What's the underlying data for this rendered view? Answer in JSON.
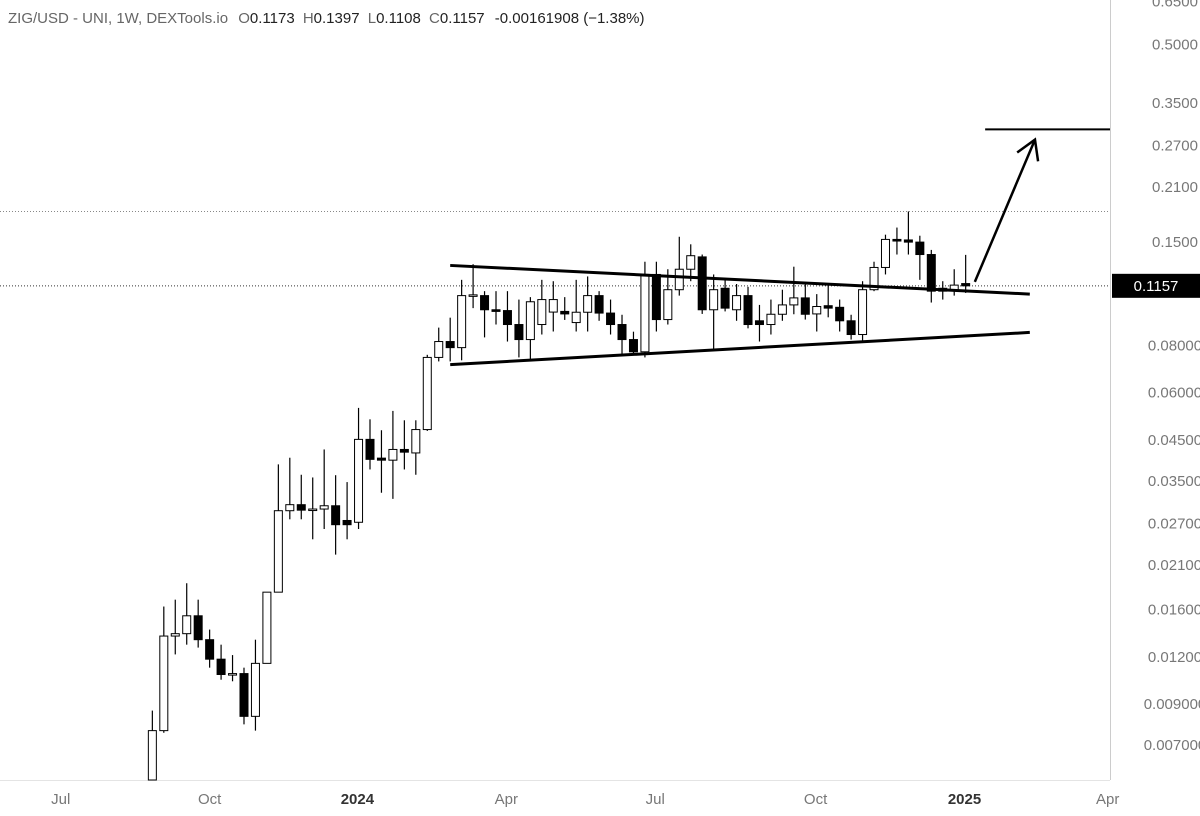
{
  "chart_data": {
    "type": "candlestick",
    "header": {
      "title": "ZIG/USD - UNI, 1W, DEXTools.io",
      "open_label": "O",
      "high_label": "H",
      "low_label": "L",
      "close_label": "C",
      "change": "-0.00161908 (−1.38%)"
    },
    "log_scale": true,
    "up_color": "#ffffff",
    "down_color": "#000000",
    "open": [
      0.0057,
      0.0077,
      0.0137,
      0.0139,
      0.0155,
      0.0134,
      0.0119,
      0.0108,
      0.0109,
      0.0084,
      0.0116,
      0.0179,
      0.0294,
      0.0305,
      0.0295,
      0.0297,
      0.0303,
      0.0277,
      0.0274,
      0.0454,
      0.0405,
      0.04,
      0.0427,
      0.0418,
      0.0482,
      0.0748,
      0.0824,
      0.0794,
      0.109,
      0.109,
      0.1,
      0.0995,
      0.0914,
      0.0834,
      0.0914,
      0.0986,
      0.099,
      0.0925,
      0.0985,
      0.109,
      0.098,
      0.0914,
      0.0834,
      0.0774,
      0.124,
      0.0942,
      0.113,
      0.128,
      0.138,
      0.1,
      0.114,
      0.1,
      0.109,
      0.0935,
      0.0914,
      0.0973,
      0.103,
      0.1075,
      0.0975,
      0.1025,
      0.1015,
      0.0935,
      0.086,
      0.113,
      0.1294,
      0.1535,
      0.153,
      0.151,
      0.14,
      0.114,
      0.1125,
      0.1173
    ],
    "high": [
      0.0087,
      0.0164,
      0.0171,
      0.0189,
      0.0171,
      0.01425,
      0.013,
      0.0122,
      0.0113,
      0.0134,
      0.0179,
      0.039,
      0.0406,
      0.0366,
      0.036,
      0.0427,
      0.0365,
      0.035,
      0.055,
      0.0513,
      0.048,
      0.054,
      0.051,
      0.051,
      0.076,
      0.0897,
      0.0953,
      0.12,
      0.132,
      0.112,
      0.112,
      0.112,
      0.1064,
      0.108,
      0.12,
      0.119,
      0.108,
      0.12,
      0.1225,
      0.112,
      0.1064,
      0.097,
      0.0875,
      0.134,
      0.134,
      0.128,
      0.156,
      0.149,
      0.14,
      0.124,
      0.12,
      0.117,
      0.115,
      0.103,
      0.1064,
      0.113,
      0.13,
      0.117,
      0.11,
      0.117,
      0.1064,
      0.097,
      0.119,
      0.134,
      0.158,
      0.165,
      0.182,
      0.157,
      0.144,
      0.119,
      0.128,
      0.1397
    ],
    "low": [
      0.0057,
      0.0076,
      0.01225,
      0.013,
      0.01277,
      0.0113,
      0.0105,
      0.0104,
      0.008,
      0.0077,
      0.0116,
      0.0179,
      0.0279,
      0.0279,
      0.0247,
      0.0263,
      0.0225,
      0.0247,
      0.0263,
      0.0378,
      0.0328,
      0.0316,
      0.0378,
      0.0366,
      0.0478,
      0.073,
      0.073,
      0.0735,
      0.101,
      0.0845,
      0.0914,
      0.0824,
      0.0748,
      0.0737,
      0.086,
      0.0876,
      0.094,
      0.0876,
      0.0876,
      0.0935,
      0.086,
      0.0762,
      0.0762,
      0.0748,
      0.0876,
      0.0914,
      0.109,
      0.119,
      0.0975,
      0.0785,
      0.099,
      0.0935,
      0.0893,
      0.0824,
      0.086,
      0.0935,
      0.0973,
      0.0942,
      0.0876,
      0.0955,
      0.0876,
      0.0834,
      0.0824,
      0.112,
      0.124,
      0.14,
      0.14,
      0.12,
      0.1045,
      0.1064,
      0.109,
      0.1108
    ],
    "close": [
      0.0077,
      0.0137,
      0.0139,
      0.0155,
      0.0134,
      0.0119,
      0.01084,
      0.0109,
      0.0084,
      0.0116,
      0.0179,
      0.0294,
      0.0305,
      0.0295,
      0.0297,
      0.0303,
      0.027,
      0.027,
      0.0454,
      0.0402,
      0.04,
      0.0427,
      0.042,
      0.0482,
      0.0748,
      0.0824,
      0.0794,
      0.109,
      0.1095,
      0.1,
      0.099,
      0.0914,
      0.0834,
      0.105,
      0.1064,
      0.1064,
      0.0975,
      0.0985,
      0.109,
      0.098,
      0.0914,
      0.0834,
      0.0774,
      0.124,
      0.0942,
      0.113,
      0.128,
      0.139,
      0.1,
      0.113,
      0.101,
      0.109,
      0.0914,
      0.0914,
      0.0973,
      0.103,
      0.1075,
      0.0973,
      0.102,
      0.101,
      0.0935,
      0.086,
      0.113,
      0.1294,
      0.1535,
      0.152,
      0.151,
      0.14,
      0.112,
      0.112,
      0.1162,
      0.1157
    ],
    "high_line": 0.182,
    "trend_lines": [
      {
        "start": [
          26.0,
          0.131
        ],
        "end": [
          76.6,
          0.11
        ]
      },
      {
        "start": [
          26.0,
          0.0716
        ],
        "end": [
          76.6,
          0.0871
        ]
      }
    ],
    "arrow": {
      "start": [
        71.8,
        0.1185
      ],
      "end": [
        77.05,
        0.282
      ]
    },
    "target_line": {
      "start": [
        72.7,
        0.3
      ],
      "end": [
        83.6,
        0.3
      ]
    },
    "xlim": [
      -13.3,
      83.6
    ],
    "xticks": [
      {
        "value": -8.0,
        "label": "Jul"
      },
      {
        "value": 5.0,
        "label": "Oct"
      },
      {
        "value": 17.9,
        "label": "2024"
      },
      {
        "value": 30.9,
        "label": "Apr"
      },
      {
        "value": 43.9,
        "label": "Jul"
      },
      {
        "value": 57.9,
        "label": "Oct"
      },
      {
        "value": 70.9,
        "label": "2025"
      },
      {
        "value": 83.4,
        "label": "Apr"
      }
    ],
    "ylim": [
      0.0057,
      0.66
    ],
    "yticks": [
      {
        "value": 0.65,
        "label": "0.6500"
      },
      {
        "value": 0.5,
        "label": "0.5000"
      },
      {
        "value": 0.35,
        "label": "0.3500"
      },
      {
        "value": 0.27,
        "label": "0.2700"
      },
      {
        "value": 0.21,
        "label": "0.2100"
      },
      {
        "value": 0.15,
        "label": "0.1500"
      },
      {
        "value": 0.08,
        "label": "0.08000"
      },
      {
        "value": 0.06,
        "label": "0.06000"
      },
      {
        "value": 0.045,
        "label": "0.04500"
      },
      {
        "value": 0.035,
        "label": "0.03500"
      },
      {
        "value": 0.027,
        "label": "0.02700"
      },
      {
        "value": 0.021,
        "label": "0.02100"
      },
      {
        "value": 0.016,
        "label": "0.01600"
      },
      {
        "value": 0.012,
        "label": "0.01200"
      },
      {
        "value": 0.009,
        "label": "0.009000"
      },
      {
        "value": 0.007,
        "label": "0.007000"
      }
    ]
  }
}
